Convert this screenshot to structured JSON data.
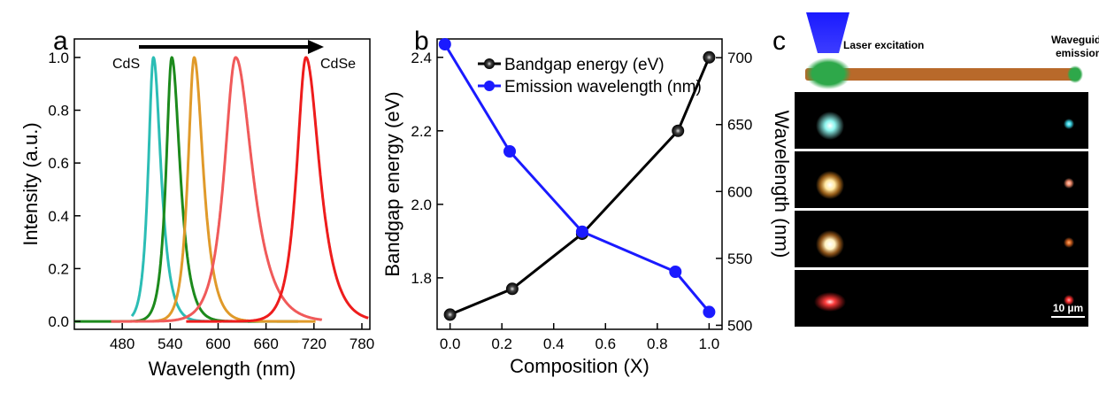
{
  "panels": {
    "a": {
      "letter": "a",
      "annotations": {
        "start": "CdS",
        "end": "CdSe"
      },
      "chart_data": {
        "type": "line",
        "xlabel": "Wavelength (nm)",
        "ylabel": "Intensity (a.u.)",
        "xlim": [
          420,
          790
        ],
        "ylim": [
          -0.03,
          1.07
        ],
        "xticks": [
          "480",
          "540",
          "600",
          "660",
          "720",
          "780"
        ],
        "yticks": [
          "0.0",
          "0.2",
          "0.4",
          "0.6",
          "0.8",
          "1.0"
        ],
        "series": [
          {
            "peak": 519,
            "width": 10,
            "start": 492,
            "end": 650,
            "color": "#2bbdb5",
            "lw": 3
          },
          {
            "peak": 542,
            "width": 11,
            "start": 420,
            "end": 700,
            "color": "#1c8a1c",
            "lw": 3
          },
          {
            "peak": 570,
            "width": 12,
            "start": 496,
            "end": 722,
            "color": "#e09a2a",
            "lw": 3
          },
          {
            "peak": 622,
            "width": 22,
            "start": 466,
            "end": 730,
            "color": "#f05a5a",
            "lw": 3
          },
          {
            "peak": 710,
            "width": 18,
            "start": 560,
            "end": 788,
            "color": "#ee1c1c",
            "lw": 3
          }
        ]
      }
    },
    "b": {
      "letter": "b",
      "chart_data": {
        "type": "line",
        "xlabel": "Composition (X)",
        "ylabel": "Bandgap energy (eV)",
        "y2label": "Wavelength (nm)",
        "xlim": [
          -0.05,
          1.05
        ],
        "ylim": [
          1.66,
          2.45
        ],
        "y2lim": [
          497,
          714
        ],
        "xticks": [
          "0.0",
          "0.2",
          "0.4",
          "0.6",
          "0.8",
          "1.0"
        ],
        "yticks": [
          "1.8",
          "2.0",
          "2.2",
          "2.4"
        ],
        "y2ticks": [
          "500",
          "550",
          "600",
          "650",
          "700"
        ],
        "series": [
          {
            "name": "Bandgap energy (eV)",
            "axis": "left",
            "color": "#000000",
            "x": [
              0.0,
              0.24,
              0.51,
              0.88,
              1.0
            ],
            "y": [
              1.7,
              1.77,
              1.92,
              2.2,
              2.4
            ]
          },
          {
            "name": "Emission wavelength  (nm)",
            "axis": "right",
            "color": "#1a1aff",
            "x": [
              -0.02,
              0.23,
              0.51,
              0.87,
              1.0
            ],
            "y": [
              710,
              630,
              570,
              540,
              510
            ]
          }
        ]
      }
    },
    "c": {
      "letter": "c",
      "labels": {
        "laser": "Laser excitation",
        "waveguide": "Waveguide emission",
        "scale": "10 µm"
      },
      "colors": {
        "laser_beam": "#1a1aff",
        "wire": "#b8692a",
        "spot": "#2ea84a",
        "image_bg": "#000000"
      },
      "frames": [
        {
          "left_color": "#8ef6ef",
          "right_color": "#38d0e0"
        },
        {
          "left_color": "#ffe7a0",
          "right_color": "#f08a6a"
        },
        {
          "left_color": "#fff2c0",
          "right_color": "#d06020"
        },
        {
          "left_color": "#ff4040",
          "right_color": "#ff3030"
        }
      ]
    }
  }
}
